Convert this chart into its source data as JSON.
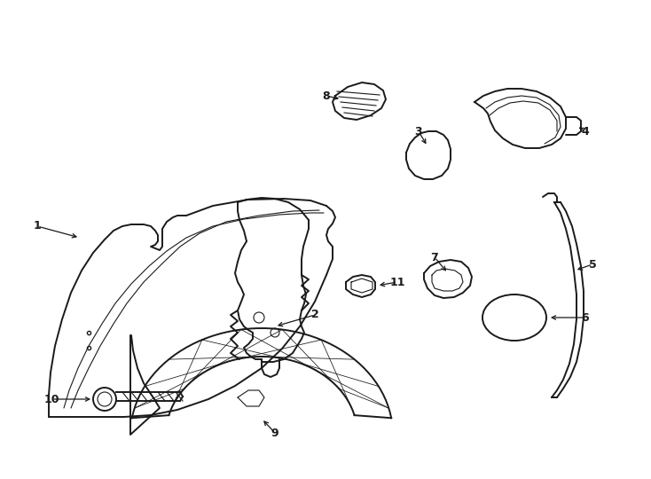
{
  "background_color": "#ffffff",
  "line_color": "#1a1a1a",
  "lw_thick": 1.4,
  "lw_thin": 0.8,
  "label_fontsize": 9,
  "figsize": [
    7.34,
    5.4
  ],
  "dpi": 100
}
